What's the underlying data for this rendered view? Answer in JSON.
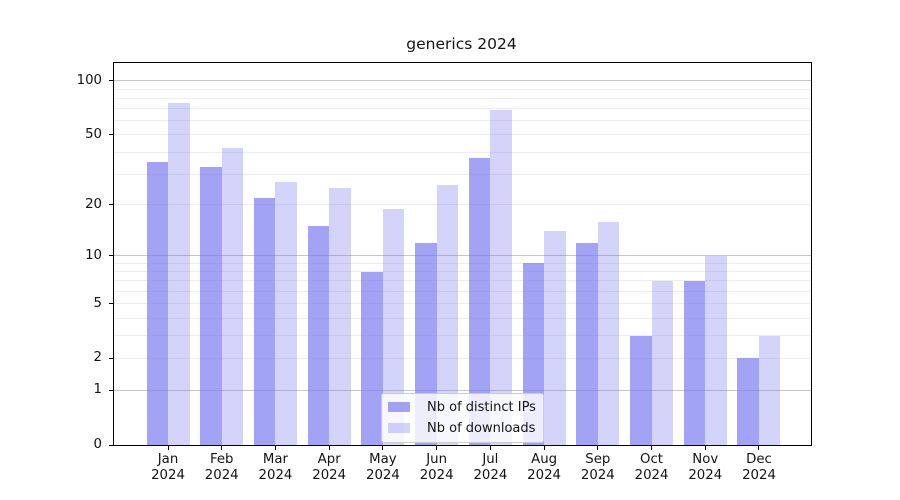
{
  "chart_data": {
    "type": "bar",
    "title": "generics 2024",
    "x": {
      "months": [
        "Jan",
        "Feb",
        "Mar",
        "Apr",
        "May",
        "Jun",
        "Jul",
        "Aug",
        "Sep",
        "Oct",
        "Nov",
        "Dec"
      ],
      "year": "2024"
    },
    "series": [
      {
        "name": "Nb of distinct IPs",
        "color": "rgba(120,120,240,0.68)",
        "values": [
          35,
          33,
          22,
          15,
          8,
          12,
          37,
          9,
          12,
          3,
          7,
          2
        ]
      },
      {
        "name": "Nb of downloads",
        "color": "rgba(120,120,240,0.32)",
        "values": [
          75,
          42,
          27,
          25,
          19,
          26,
          69,
          14,
          16,
          7,
          10,
          3
        ]
      }
    ],
    "yscale": "log1p",
    "ylim": [
      0,
      126
    ],
    "yticks": [
      "0",
      "1",
      "2",
      "5",
      "10",
      "20",
      "50",
      "100"
    ],
    "major_gridlines": [
      1,
      10,
      100
    ],
    "minor_gridlines": [
      2,
      3,
      4,
      5,
      6,
      7,
      8,
      9,
      20,
      30,
      40,
      50,
      60,
      70,
      80,
      90
    ],
    "grid": true,
    "legend_position": "lower center",
    "colors": {
      "axis": "#000000",
      "major_grid": "#c6c6c6",
      "minor_grid": "#ececec",
      "text": "#141414",
      "bar_dark_rendered": "#a7a7f3",
      "bar_light_rendered": "#d9d9f9"
    }
  }
}
